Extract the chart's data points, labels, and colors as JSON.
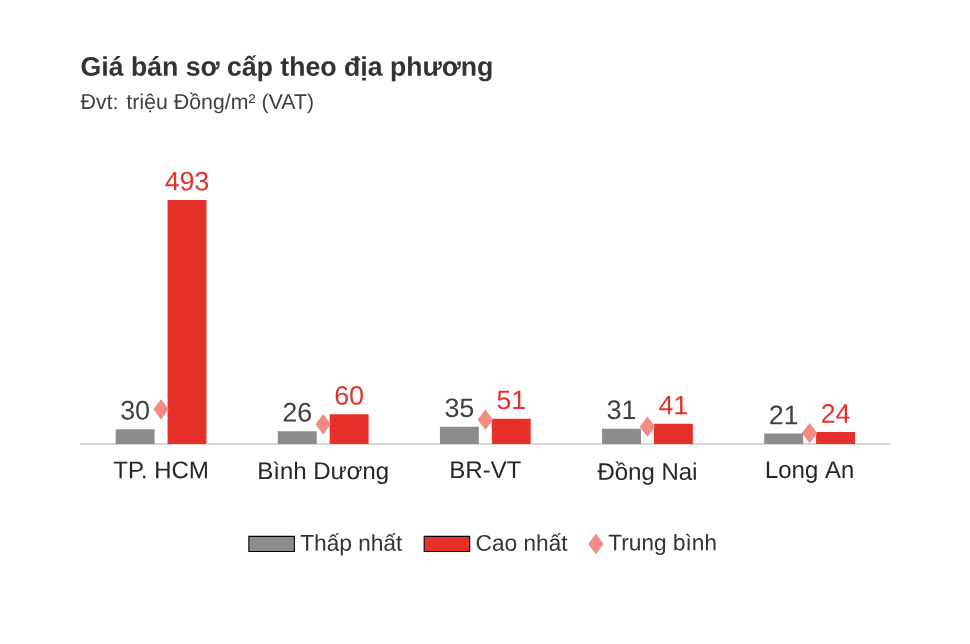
{
  "chart_data": {
    "type": "bar",
    "title": "Giá bán sơ cấp theo địa phương",
    "subtitle": "Đvt: triệu Đồng/m² (VAT)",
    "categories": [
      "TP. HCM",
      "Bình Dương",
      "BR-VT",
      "Đồng Nai",
      "Long An"
    ],
    "series": [
      {
        "name": "Thấp nhất",
        "color": "#8c8c8c",
        "values": [
          30,
          26,
          35,
          31,
          21
        ],
        "value_labels": [
          "30",
          "26",
          "35",
          "31",
          "21"
        ]
      },
      {
        "name": "Cao nhất",
        "color": "#e8302a",
        "values": [
          493,
          60,
          51,
          41,
          24
        ],
        "value_labels": [
          "493",
          "60",
          "51",
          "41",
          "24"
        ]
      },
      {
        "name": "Trung bình",
        "type": "scatter",
        "color": "#f08c84",
        "values": [
          70,
          40,
          49,
          35,
          22
        ]
      }
    ],
    "marker": "diamond",
    "legend": "bottom"
  }
}
